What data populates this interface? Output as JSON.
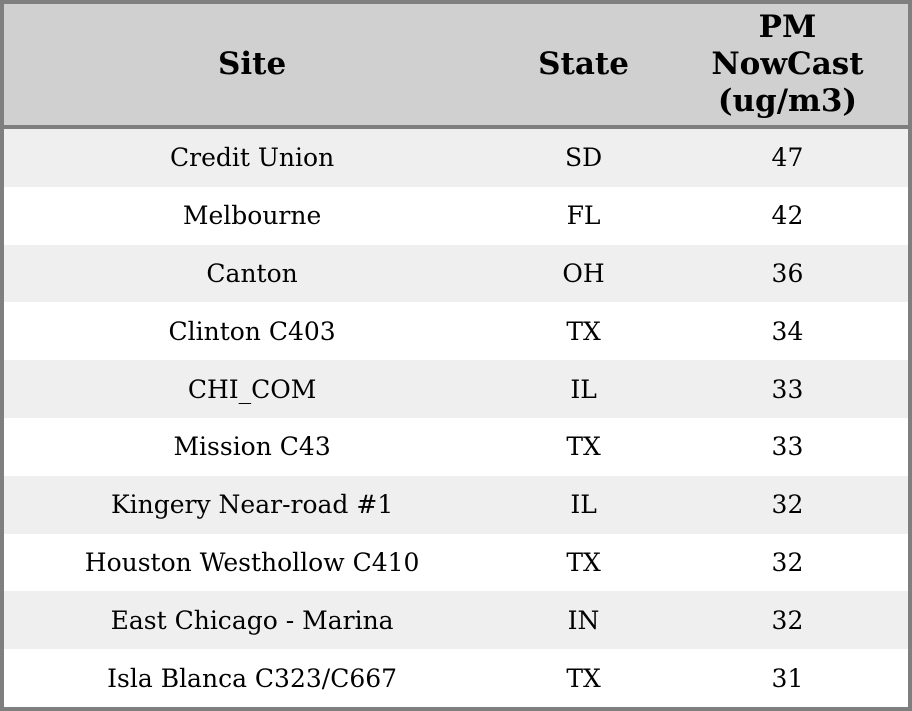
{
  "colors": {
    "header_background": "#d0d0d0",
    "frame_border": "#7f7f7f",
    "row_stripe": "#efefef",
    "row_plain": "#ffffff",
    "text": "#000000"
  },
  "chart_data": {
    "type": "table",
    "columns": [
      "Site",
      "State",
      "PM\nNowCast\n(ug/m3)"
    ],
    "rows": [
      [
        "Credit Union",
        "SD",
        47
      ],
      [
        "Melbourne",
        "FL",
        42
      ],
      [
        "Canton",
        "OH",
        36
      ],
      [
        "Clinton C403",
        "TX",
        34
      ],
      [
        "CHI_COM",
        "IL",
        33
      ],
      [
        "Mission C43",
        "TX",
        33
      ],
      [
        "Kingery Near-road #1",
        "IL",
        32
      ],
      [
        "Houston Westhollow C410",
        "TX",
        32
      ],
      [
        "East Chicago - Marina",
        "IN",
        32
      ],
      [
        "Isla Blanca C323/C667",
        "TX",
        31
      ]
    ]
  }
}
